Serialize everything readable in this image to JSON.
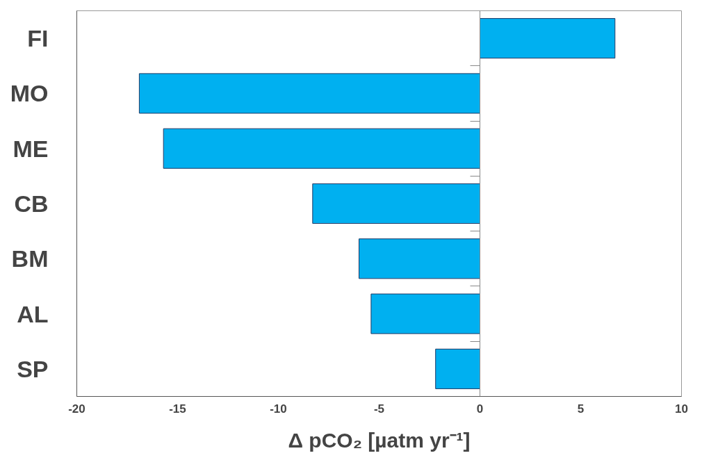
{
  "chart_data": {
    "type": "bar",
    "orientation": "horizontal",
    "xlabel": "Δ pCO₂ [µatm yr⁻¹]",
    "categories": [
      "FI",
      "MO",
      "ME",
      "CB",
      "BM",
      "AL",
      "SP"
    ],
    "values": [
      6.7,
      -16.9,
      -15.7,
      -8.3,
      -6.0,
      -5.4,
      -2.2
    ],
    "color": "#00b0f0",
    "xlim": [
      -20,
      10
    ],
    "xticks": [
      -20,
      -15,
      -10,
      -5,
      0,
      5,
      10
    ]
  }
}
